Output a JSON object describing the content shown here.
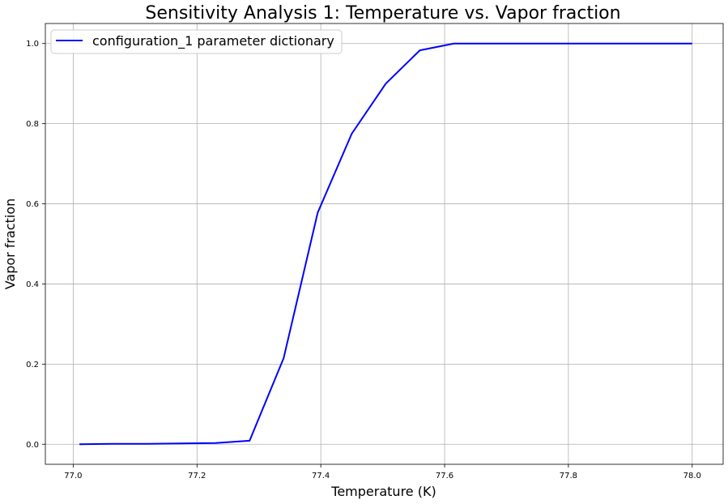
{
  "chart_data": {
    "type": "line",
    "title": "Sensitivity Analysis 1: Temperature vs. Vapor fraction",
    "xlabel": "Temperature (K)",
    "ylabel": "Vapor fraction",
    "xlim": [
      76.955,
      78.05
    ],
    "ylim": [
      -0.05,
      1.05
    ],
    "xticks": [
      77.0,
      77.2,
      77.4,
      77.6,
      77.8,
      78.0
    ],
    "xtick_labels": [
      "77.0",
      "77.2",
      "77.4",
      "77.6",
      "77.8",
      "78.0"
    ],
    "yticks": [
      0.0,
      0.2,
      0.4,
      0.6,
      0.8,
      1.0
    ],
    "ytick_labels": [
      "0.0",
      "0.2",
      "0.4",
      "0.6",
      "0.8",
      "1.0"
    ],
    "grid": true,
    "legend_position": "top-left",
    "series": [
      {
        "name": "configuration_1 parameter dictionary",
        "color": "#0000ff",
        "x": [
          77.01,
          77.065,
          77.12,
          77.175,
          77.23,
          77.285,
          77.34,
          77.395,
          77.45,
          77.505,
          77.56,
          77.615,
          77.67,
          77.725,
          77.78,
          77.835,
          77.89,
          77.945,
          78.0
        ],
        "y": [
          0.0,
          0.001,
          0.001,
          0.002,
          0.003,
          0.009,
          0.215,
          0.578,
          0.775,
          0.9,
          0.983,
          1.0,
          1.0,
          1.0,
          1.0,
          1.0,
          1.0,
          1.0,
          1.0
        ]
      }
    ]
  }
}
